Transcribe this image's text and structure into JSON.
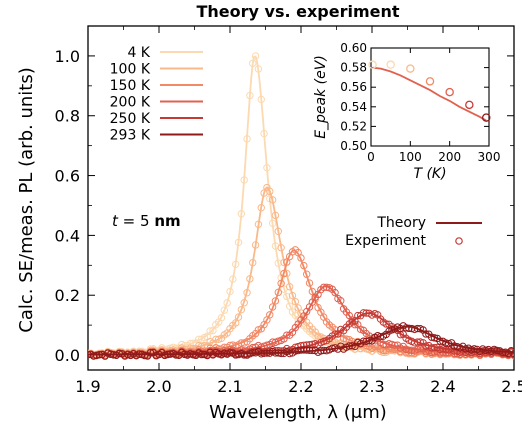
{
  "chart_data": [
    {
      "type": "line",
      "title": "Theory vs. experiment",
      "xlabel": "Wavelength, λ (μm)",
      "ylabel": "Calc. SE/meas. PL (arb. units)",
      "xlim": [
        1.9,
        2.5
      ],
      "ylim": [
        -0.05,
        1.1
      ],
      "x_ticks": [
        1.9,
        2.0,
        2.1,
        2.2,
        2.3,
        2.4,
        2.5
      ],
      "x_tick_labels": [
        "1.9",
        "2.0",
        "2.1",
        "2.2",
        "2.3",
        "2.4",
        "2.5"
      ],
      "y_ticks": [
        0.0,
        0.2,
        0.4,
        0.6,
        0.8,
        1.0
      ],
      "y_tick_labels": [
        "0.0",
        "0.2",
        "0.4",
        "0.6",
        "0.8",
        "1.0"
      ],
      "grid": false,
      "legend_position": "top-left",
      "annotation": "t = 5 nm",
      "style_legend": [
        {
          "label": "Theory",
          "style": "line"
        },
        {
          "label": "Experiment",
          "style": "circle"
        }
      ],
      "series": [
        {
          "name": "4 K",
          "color": "#fcd9b0",
          "peak_x": 2.135,
          "peak_y": 1.0,
          "width_left": 0.018,
          "width_right": 0.022
        },
        {
          "name": "100 K",
          "color": "#f9b98a",
          "peak_x": 2.152,
          "peak_y": 0.56,
          "width_left": 0.022,
          "width_right": 0.027
        },
        {
          "name": "150 K",
          "color": "#f28a67",
          "peak_x": 2.19,
          "peak_y": 0.35,
          "width_left": 0.027,
          "width_right": 0.032
        },
        {
          "name": "200 K",
          "color": "#e2604f",
          "peak_x": 2.235,
          "peak_y": 0.23,
          "width_left": 0.034,
          "width_right": 0.038
        },
        {
          "name": "250 K",
          "color": "#c53a34",
          "peak_x": 2.295,
          "peak_y": 0.14,
          "width_left": 0.045,
          "width_right": 0.046
        },
        {
          "name": "293 K",
          "color": "#8f1a1a",
          "peak_x": 2.35,
          "peak_y": 0.095,
          "width_left": 0.055,
          "width_right": 0.05
        }
      ]
    },
    {
      "type": "scatter",
      "xlabel": "T (K)",
      "ylabel": "E_peak (eV)",
      "xlim": [
        0,
        300
      ],
      "ylim": [
        0.5,
        0.6
      ],
      "x_ticks": [
        0,
        100,
        200,
        300
      ],
      "x_tick_labels": [
        "0",
        "100",
        "200",
        "300"
      ],
      "y_ticks": [
        0.5,
        0.52,
        0.54,
        0.56,
        0.58,
        0.6
      ],
      "y_tick_labels": [
        "0.50",
        "0.52",
        "0.54",
        "0.56",
        "0.58",
        "0.60"
      ],
      "line_color": "#e2604f",
      "theory_line": {
        "x": [
          4,
          25,
          50,
          75,
          100,
          125,
          150,
          175,
          200,
          225,
          250,
          275,
          293
        ],
        "y": [
          0.58,
          0.579,
          0.576,
          0.572,
          0.567,
          0.562,
          0.557,
          0.551,
          0.546,
          0.54,
          0.535,
          0.53,
          0.526
        ]
      },
      "points": [
        {
          "x": 4,
          "y": 0.583,
          "color": "#fcd9b0"
        },
        {
          "x": 50,
          "y": 0.583,
          "color": "#fcd9b0"
        },
        {
          "x": 100,
          "y": 0.579,
          "color": "#f9b98a"
        },
        {
          "x": 150,
          "y": 0.566,
          "color": "#f28a67"
        },
        {
          "x": 200,
          "y": 0.555,
          "color": "#e2604f"
        },
        {
          "x": 250,
          "y": 0.542,
          "color": "#c53a34"
        },
        {
          "x": 293,
          "y": 0.529,
          "color": "#8f1a1a"
        }
      ]
    }
  ]
}
